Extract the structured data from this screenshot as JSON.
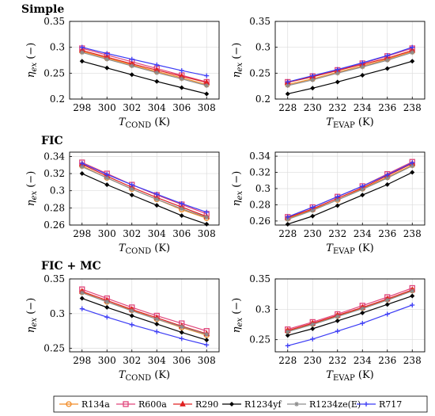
{
  "sections": [
    "Simple",
    "FIC",
    "FIC + MC"
  ],
  "y_label": {
    "symbol": "η",
    "subscript": "ex",
    "unit": "(−)"
  },
  "x_labels": {
    "cond": {
      "symbol": "T",
      "subscript": "COND",
      "unit": "(K)"
    },
    "evap": {
      "symbol": "T",
      "subscript": "EVAP",
      "unit": "(K)"
    }
  },
  "legend": [
    {
      "name": "R134a",
      "color": "#f28c28",
      "marker": "circle-open"
    },
    {
      "name": "R600a",
      "color": "#e0457b",
      "marker": "square-open"
    },
    {
      "name": "R290",
      "color": "#e02020",
      "marker": "triangle"
    },
    {
      "name": "R1234yf",
      "color": "#000000",
      "marker": "diamond"
    },
    {
      "name": "R1234ze(E)",
      "color": "#8c8c8c",
      "marker": "star"
    },
    {
      "name": "R717",
      "color": "#3b3bf5",
      "marker": "plus"
    }
  ],
  "chart_data": [
    {
      "type": "line",
      "section": "Simple",
      "x": [
        298,
        300,
        302,
        304,
        306,
        308
      ],
      "xlim": [
        297,
        309
      ],
      "ylim": [
        0.2,
        0.35
      ],
      "yticks": [
        "0.2",
        "0.25",
        "0.3",
        "0.35"
      ],
      "yticks_val": [
        0.2,
        0.25,
        0.3,
        0.35
      ],
      "xlabel": "T_COND (K)",
      "ylabel": "η_ex (−)",
      "grid": true,
      "series": [
        {
          "name": "R134a",
          "values": [
            0.292,
            0.279,
            0.266,
            0.253,
            0.241,
            0.228
          ]
        },
        {
          "name": "R600a",
          "values": [
            0.298,
            0.285,
            0.272,
            0.259,
            0.246,
            0.233
          ]
        },
        {
          "name": "R290",
          "values": [
            0.294,
            0.281,
            0.268,
            0.256,
            0.244,
            0.232
          ]
        },
        {
          "name": "R1234yf",
          "values": [
            0.273,
            0.26,
            0.247,
            0.234,
            0.222,
            0.21
          ]
        },
        {
          "name": "R1234ze(E)",
          "values": [
            0.29,
            0.277,
            0.264,
            0.251,
            0.239,
            0.226
          ]
        },
        {
          "name": "R717",
          "values": [
            0.3,
            0.288,
            0.277,
            0.266,
            0.255,
            0.245
          ]
        }
      ]
    },
    {
      "type": "line",
      "section": "Simple",
      "x": [
        228,
        230,
        232,
        234,
        236,
        238
      ],
      "xlim": [
        227,
        239
      ],
      "ylim": [
        0.2,
        0.35
      ],
      "yticks": [
        "0.2",
        "0.25",
        "0.3",
        "0.35"
      ],
      "yticks_val": [
        0.2,
        0.25,
        0.3,
        0.35
      ],
      "xlabel": "T_EVAP (K)",
      "ylabel": "η_ex (−)",
      "grid": true,
      "series": [
        {
          "name": "R134a",
          "values": [
            0.228,
            0.239,
            0.252,
            0.264,
            0.277,
            0.292
          ]
        },
        {
          "name": "R600a",
          "values": [
            0.233,
            0.244,
            0.256,
            0.269,
            0.283,
            0.298
          ]
        },
        {
          "name": "R290",
          "values": [
            0.232,
            0.243,
            0.255,
            0.267,
            0.279,
            0.294
          ]
        },
        {
          "name": "R1234yf",
          "values": [
            0.21,
            0.221,
            0.233,
            0.246,
            0.259,
            0.273
          ]
        },
        {
          "name": "R1234ze(E)",
          "values": [
            0.226,
            0.237,
            0.25,
            0.262,
            0.275,
            0.29
          ]
        },
        {
          "name": "R717",
          "values": [
            0.233,
            0.245,
            0.257,
            0.27,
            0.284,
            0.3
          ]
        }
      ]
    },
    {
      "type": "line",
      "section": "FIC",
      "x": [
        298,
        300,
        302,
        304,
        306,
        308
      ],
      "xlim": [
        297,
        309
      ],
      "ylim": [
        0.26,
        0.345
      ],
      "yticks": [
        "0.26",
        "0.28",
        "0.3",
        "0.32",
        "0.34"
      ],
      "yticks_val": [
        0.26,
        0.28,
        0.3,
        0.32,
        0.34
      ],
      "xlabel": "T_COND (K)",
      "ylabel": "η_ex (−)",
      "grid": true,
      "series": [
        {
          "name": "R134a",
          "values": [
            0.329,
            0.315,
            0.302,
            0.29,
            0.278,
            0.268
          ]
        },
        {
          "name": "R600a",
          "values": [
            0.333,
            0.32,
            0.307,
            0.295,
            0.284,
            0.273
          ]
        },
        {
          "name": "R290",
          "values": [
            0.331,
            0.317,
            0.304,
            0.292,
            0.281,
            0.27
          ]
        },
        {
          "name": "R1234yf",
          "values": [
            0.32,
            0.307,
            0.295,
            0.283,
            0.271,
            0.261
          ]
        },
        {
          "name": "R1234ze(E)",
          "values": [
            0.328,
            0.315,
            0.302,
            0.29,
            0.279,
            0.269
          ]
        },
        {
          "name": "R717",
          "values": [
            0.332,
            0.319,
            0.307,
            0.296,
            0.285,
            0.275
          ]
        }
      ]
    },
    {
      "type": "line",
      "section": "FIC",
      "x": [
        228,
        230,
        232,
        234,
        236,
        238
      ],
      "xlim": [
        227,
        239
      ],
      "ylim": [
        0.255,
        0.345
      ],
      "yticks": [
        "0.26",
        "0.28",
        "0.3",
        "0.32",
        "0.34"
      ],
      "yticks_val": [
        0.26,
        0.28,
        0.3,
        0.32,
        0.34
      ],
      "xlabel": "T_EVAP (K)",
      "ylabel": "η_ex (−)",
      "grid": true,
      "series": [
        {
          "name": "R134a",
          "values": [
            0.263,
            0.274,
            0.286,
            0.3,
            0.314,
            0.329
          ]
        },
        {
          "name": "R600a",
          "values": [
            0.265,
            0.277,
            0.29,
            0.303,
            0.318,
            0.333
          ]
        },
        {
          "name": "R290",
          "values": [
            0.264,
            0.275,
            0.288,
            0.301,
            0.316,
            0.331
          ]
        },
        {
          "name": "R1234yf",
          "values": [
            0.256,
            0.266,
            0.279,
            0.292,
            0.305,
            0.32
          ]
        },
        {
          "name": "R1234ze(E)",
          "values": [
            0.262,
            0.273,
            0.286,
            0.299,
            0.313,
            0.328
          ]
        },
        {
          "name": "R717",
          "values": [
            0.265,
            0.277,
            0.29,
            0.303,
            0.317,
            0.332
          ]
        }
      ]
    },
    {
      "type": "line",
      "section": "FIC + MC",
      "x": [
        298,
        300,
        302,
        304,
        306,
        308
      ],
      "xlim": [
        297,
        309
      ],
      "ylim": [
        0.245,
        0.35
      ],
      "yticks": [
        "0.25",
        "0.3",
        "0.35"
      ],
      "yticks_val": [
        0.25,
        0.3,
        0.35
      ],
      "xlabel": "T_COND (K)",
      "ylabel": "η_ex (−)",
      "grid": true,
      "series": [
        {
          "name": "R134a",
          "values": [
            0.331,
            0.317,
            0.305,
            0.292,
            0.28,
            0.269
          ]
        },
        {
          "name": "R600a",
          "values": [
            0.335,
            0.322,
            0.309,
            0.297,
            0.286,
            0.275
          ]
        },
        {
          "name": "R290",
          "values": [
            0.332,
            0.319,
            0.306,
            0.294,
            0.282,
            0.271
          ]
        },
        {
          "name": "R1234yf",
          "values": [
            0.322,
            0.309,
            0.297,
            0.285,
            0.273,
            0.262
          ]
        },
        {
          "name": "R1234ze(E)",
          "values": [
            0.33,
            0.317,
            0.304,
            0.292,
            0.281,
            0.27
          ]
        },
        {
          "name": "R717",
          "values": [
            0.307,
            0.295,
            0.284,
            0.274,
            0.264,
            0.255
          ]
        }
      ]
    },
    {
      "type": "line",
      "section": "FIC + MC",
      "x": [
        228,
        230,
        232,
        234,
        236,
        238
      ],
      "xlim": [
        227,
        239
      ],
      "ylim": [
        0.23,
        0.35
      ],
      "yticks": [
        "0.25",
        "0.3",
        "0.35"
      ],
      "yticks_val": [
        0.25,
        0.3,
        0.35
      ],
      "xlabel": "T_EVAP (K)",
      "ylabel": "η_ex (−)",
      "grid": true,
      "series": [
        {
          "name": "R134a",
          "values": [
            0.264,
            0.276,
            0.289,
            0.302,
            0.316,
            0.331
          ]
        },
        {
          "name": "R600a",
          "values": [
            0.267,
            0.279,
            0.292,
            0.306,
            0.32,
            0.335
          ]
        },
        {
          "name": "R290",
          "values": [
            0.265,
            0.277,
            0.29,
            0.303,
            0.317,
            0.332
          ]
        },
        {
          "name": "R1234yf",
          "values": [
            0.257,
            0.268,
            0.281,
            0.294,
            0.308,
            0.322
          ]
        },
        {
          "name": "R1234ze(E)",
          "values": [
            0.263,
            0.275,
            0.288,
            0.301,
            0.315,
            0.33
          ]
        },
        {
          "name": "R717",
          "values": [
            0.24,
            0.251,
            0.264,
            0.277,
            0.292,
            0.307
          ]
        }
      ]
    }
  ]
}
